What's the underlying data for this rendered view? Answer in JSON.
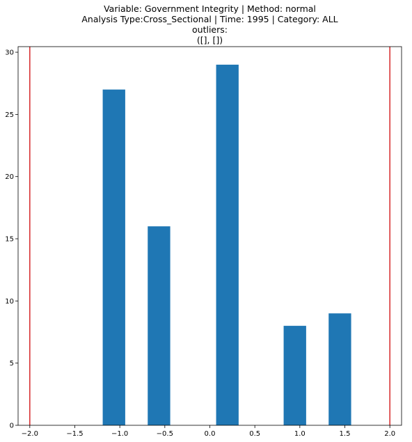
{
  "chart_data": {
    "type": "bar",
    "title_lines": [
      "Variable: Government Integrity | Method: normal",
      "Analysis Type:Cross_Sectional | Time: 1995 | Category: ALL",
      "outliers:",
      "([], [])"
    ],
    "xlabel": "",
    "ylabel": "",
    "xlim": [
      -2.13,
      2.13
    ],
    "ylim": [
      0,
      30.45
    ],
    "xticks": [
      -2.0,
      -1.5,
      -1.0,
      -0.5,
      0.0,
      0.5,
      1.0,
      1.5,
      2.0
    ],
    "xtick_labels": [
      "−2.0",
      "−1.5",
      "−1.0",
      "−0.5",
      "0.0",
      "0.5",
      "1.0",
      "1.5",
      "2.0"
    ],
    "yticks": [
      0,
      5,
      10,
      15,
      20,
      25,
      30
    ],
    "ytick_labels": [
      "0",
      "5",
      "10",
      "15",
      "20",
      "25",
      "30"
    ],
    "bars": [
      {
        "left": -1.19,
        "right": -0.94,
        "value": 27
      },
      {
        "left": -0.69,
        "right": -0.44,
        "value": 16
      },
      {
        "left": 0.07,
        "right": 0.32,
        "value": 29
      },
      {
        "left": 0.82,
        "right": 1.07,
        "value": 8
      },
      {
        "left": 1.32,
        "right": 1.57,
        "value": 9
      }
    ],
    "bar_color": "#1f77b4",
    "vlines": [
      -2.0,
      2.0
    ],
    "vline_color": "#d62728",
    "grid": false,
    "legend": "none"
  }
}
